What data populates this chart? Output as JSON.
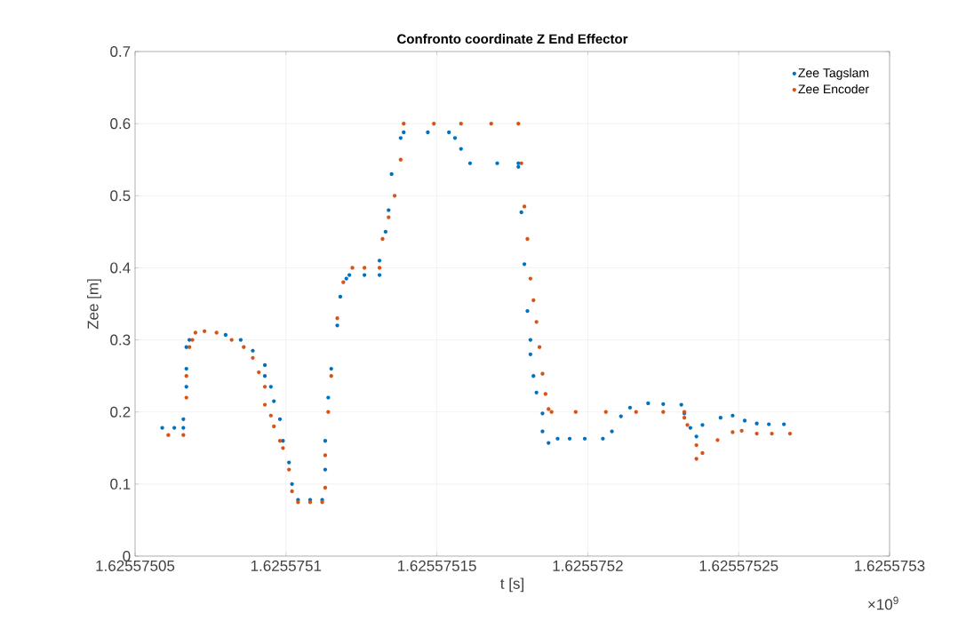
{
  "chart_data": {
    "type": "scatter",
    "title": "Confronto coordinate Z End Effector",
    "xlabel": "t [s]",
    "ylabel": "Zee [m]",
    "annotations": [
      "×10$^{9}$"
    ],
    "xlim": [
      1.62557505,
      1.6255753
    ],
    "xticks": [
      1.62557505,
      1.6255751,
      1.62557515,
      1.6255752,
      1.62557525,
      1.6255753
    ],
    "ylim": [
      0,
      0.7
    ],
    "yticks": [
      0,
      0.1,
      0.2,
      0.3,
      0.4,
      0.5,
      0.6,
      0.7
    ],
    "grid": true,
    "legend": "top right",
    "marker": "circle",
    "series": [
      {
        "name": "Zee Tagslam",
        "color": "#0072bd",
        "x": [
          1.625575059,
          1.625575063,
          1.625575066,
          1.625575066,
          1.625575067,
          1.625575067,
          1.625575067,
          1.625575068,
          1.62557508,
          1.625575085,
          1.625575089,
          1.625575093,
          1.625575093,
          1.625575095,
          1.625575096,
          1.625575098,
          1.625575099,
          1.625575101,
          1.625575102,
          1.625575104,
          1.625575108,
          1.625575112,
          1.625575113,
          1.625575113,
          1.625575114,
          1.625575115,
          1.625575117,
          1.625575118,
          1.62557512,
          1.625575121,
          1.625575126,
          1.625575131,
          1.625575131,
          1.625575133,
          1.625575134,
          1.625575135,
          1.625575138,
          1.625575139,
          1.625575147,
          1.625575154,
          1.625575156,
          1.625575158,
          1.625575161,
          1.62557517,
          1.625575177,
          1.625575177,
          1.625575178,
          1.625575179,
          1.62557518,
          1.625575181,
          1.625575181,
          1.625575182,
          1.625575183,
          1.625575185,
          1.625575185,
          1.625575187,
          1.62557519,
          1.625575194,
          1.625575199,
          1.625575205,
          1.625575208,
          1.625575211,
          1.625575214,
          1.62557522,
          1.625575225,
          1.625575231,
          1.625575232,
          1.625575234,
          1.625575236,
          1.625575238,
          1.625575244,
          1.625575248,
          1.625575252,
          1.625575256,
          1.62557526,
          1.625575265
        ],
        "values": [
          0.178,
          0.178,
          0.178,
          0.19,
          0.235,
          0.26,
          0.29,
          0.3,
          0.307,
          0.3,
          0.285,
          0.265,
          0.25,
          0.235,
          0.215,
          0.19,
          0.16,
          0.13,
          0.1,
          0.078,
          0.078,
          0.078,
          0.12,
          0.16,
          0.22,
          0.26,
          0.32,
          0.36,
          0.385,
          0.39,
          0.39,
          0.39,
          0.41,
          0.45,
          0.48,
          0.53,
          0.58,
          0.588,
          0.588,
          0.588,
          0.58,
          0.565,
          0.545,
          0.545,
          0.545,
          0.54,
          0.477,
          0.405,
          0.34,
          0.3,
          0.28,
          0.25,
          0.227,
          0.198,
          0.173,
          0.157,
          0.163,
          0.163,
          0.163,
          0.163,
          0.173,
          0.194,
          0.206,
          0.212,
          0.211,
          0.21,
          0.198,
          0.178,
          0.166,
          0.182,
          0.192,
          0.195,
          0.188,
          0.184,
          0.183,
          0.183
        ]
      },
      {
        "name": "Zee Encoder",
        "color": "#d95319",
        "x": [
          1.625575061,
          1.625575066,
          1.625575067,
          1.625575067,
          1.625575068,
          1.625575069,
          1.62557507,
          1.625575073,
          1.625575077,
          1.625575082,
          1.625575086,
          1.625575089,
          1.625575091,
          1.625575093,
          1.625575093,
          1.625575095,
          1.625575096,
          1.625575098,
          1.625575099,
          1.625575101,
          1.625575102,
          1.625575104,
          1.625575108,
          1.625575112,
          1.625575113,
          1.625575113,
          1.625575114,
          1.625575115,
          1.625575117,
          1.625575119,
          1.625575122,
          1.625575126,
          1.625575131,
          1.625575132,
          1.625575134,
          1.625575136,
          1.625575138,
          1.625575139,
          1.625575149,
          1.625575158,
          1.625575168,
          1.625575177,
          1.625575178,
          1.625575179,
          1.62557518,
          1.625575181,
          1.625575182,
          1.625575183,
          1.625575184,
          1.625575185,
          1.625575186,
          1.625575187,
          1.625575188,
          1.625575196,
          1.625575206,
          1.625575216,
          1.625575225,
          1.625575232,
          1.625575232,
          1.625575233,
          1.625575236,
          1.625575236,
          1.625575238,
          1.625575243,
          1.625575248,
          1.625575251,
          1.625575256,
          1.625575261,
          1.625575267
        ],
        "values": [
          0.168,
          0.168,
          0.22,
          0.25,
          0.29,
          0.3,
          0.31,
          0.312,
          0.31,
          0.3,
          0.29,
          0.275,
          0.255,
          0.235,
          0.21,
          0.195,
          0.18,
          0.16,
          0.15,
          0.12,
          0.09,
          0.075,
          0.075,
          0.075,
          0.095,
          0.14,
          0.2,
          0.25,
          0.33,
          0.38,
          0.4,
          0.4,
          0.4,
          0.44,
          0.47,
          0.5,
          0.55,
          0.6,
          0.6,
          0.6,
          0.6,
          0.6,
          0.545,
          0.485,
          0.44,
          0.385,
          0.355,
          0.325,
          0.29,
          0.253,
          0.225,
          0.204,
          0.2,
          0.2,
          0.2,
          0.2,
          0.2,
          0.2,
          0.192,
          0.182,
          0.154,
          0.135,
          0.143,
          0.161,
          0.172,
          0.174,
          0.17,
          0.17,
          0.17
        ]
      }
    ]
  }
}
